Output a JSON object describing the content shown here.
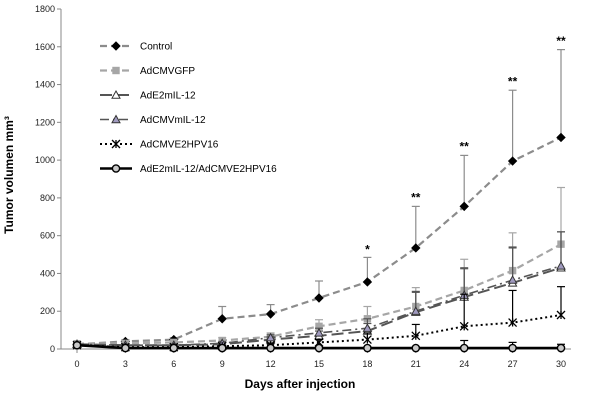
{
  "chart_data": {
    "type": "line",
    "title": "",
    "xlabel": "Days after injection",
    "ylabel": "Tumor volumen mm³",
    "x": [
      0,
      3,
      6,
      9,
      12,
      15,
      18,
      21,
      24,
      27,
      30
    ],
    "xlim": [
      0,
      30
    ],
    "ylim": [
      0,
      1800
    ],
    "yticks": [
      0,
      200,
      400,
      600,
      800,
      1000,
      1200,
      1400,
      1600,
      1800
    ],
    "grid": false,
    "legend_position": "top-left",
    "series": [
      {
        "name": "Control",
        "color": "#8c8c8c",
        "dash": "dashed",
        "marker": "diamond",
        "marker_color": "#000000",
        "values": [
          25,
          40,
          50,
          160,
          185,
          270,
          355,
          535,
          755,
          995,
          1120
        ],
        "errors": [
          8,
          10,
          10,
          65,
          50,
          90,
          130,
          220,
          270,
          375,
          465
        ]
      },
      {
        "name": "AdCMVGFP",
        "color": "#a6a6a6",
        "dash": "dashed",
        "marker": "square",
        "marker_color": "#a6a6a6",
        "values": [
          28,
          30,
          35,
          45,
          65,
          120,
          160,
          225,
          310,
          415,
          555
        ],
        "errors": [
          5,
          8,
          8,
          15,
          20,
          35,
          65,
          100,
          165,
          200,
          300
        ]
      },
      {
        "name": "AdE2mIL-12",
        "color": "#555555",
        "dash": "longdash",
        "marker": "triangle",
        "marker_color": "#ffffff",
        "values": [
          25,
          20,
          20,
          25,
          50,
          70,
          95,
          195,
          275,
          350,
          430
        ],
        "errors": [
          5,
          5,
          5,
          8,
          15,
          25,
          40,
          110,
          155,
          190,
          190
        ]
      },
      {
        "name": "AdCMVmIL-12",
        "color": "#555555",
        "dash": "dashdot",
        "marker": "triangle",
        "marker_color": "#a09abf",
        "values": [
          25,
          20,
          20,
          30,
          60,
          85,
          110,
          200,
          285,
          365,
          440
        ],
        "errors": [
          5,
          5,
          5,
          10,
          15,
          25,
          50,
          100,
          140,
          170,
          180
        ]
      },
      {
        "name": "AdCMVE2HPV16",
        "color": "#000000",
        "dash": "dotted",
        "marker": "x",
        "marker_color": "#000000",
        "values": [
          20,
          10,
          10,
          15,
          20,
          35,
          50,
          70,
          120,
          140,
          180
        ],
        "errors": [
          5,
          5,
          5,
          5,
          8,
          15,
          35,
          60,
          170,
          170,
          150
        ]
      },
      {
        "name": "AdE2mIL-12/AdCMVE2HPV16",
        "color": "#000000",
        "dash": "solid",
        "marker": "circle",
        "marker_color": "#c8c8c8",
        "values": [
          20,
          5,
          5,
          5,
          5,
          5,
          5,
          5,
          5,
          5,
          5
        ],
        "errors": [
          5,
          2,
          2,
          2,
          2,
          2,
          5,
          5,
          40,
          30,
          20
        ]
      }
    ],
    "annotations": [
      {
        "x": 18,
        "y": 505,
        "text": "*"
      },
      {
        "x": 21,
        "y": 780,
        "text": "**"
      },
      {
        "x": 24,
        "y": 1050,
        "text": "**"
      },
      {
        "x": 27,
        "y": 1395,
        "text": "**"
      },
      {
        "x": 30,
        "y": 1610,
        "text": "**"
      }
    ]
  }
}
